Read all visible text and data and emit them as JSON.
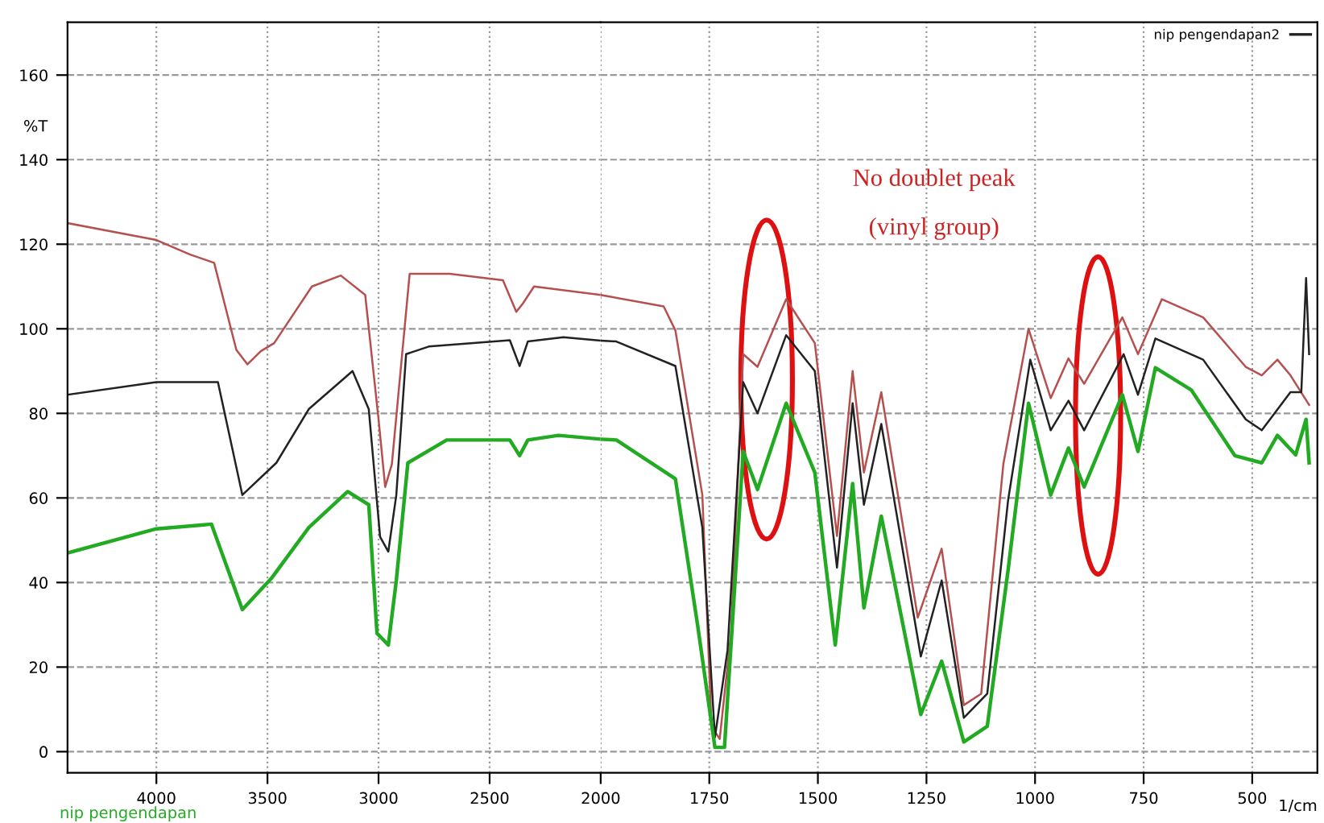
{
  "chart_data": [
    {
      "type": "line",
      "ylabel": "%T",
      "xlim": [
        4400,
        2000
      ],
      "ylim": [
        -5,
        172.5
      ],
      "xticks": [
        4000,
        3500,
        3000,
        2500
      ],
      "yticks": [
        0,
        20,
        40,
        60,
        80,
        100,
        120,
        140,
        160
      ],
      "grid": true,
      "line_style": "solid",
      "marker": "none",
      "annotations": [
        "nip pengendapan"
      ],
      "series": [
        {
          "color": "#b5504f",
          "x": [
            4400,
            4000,
            3850,
            3740,
            3640,
            3590,
            3530,
            3470,
            3300,
            3170,
            3060,
            3000,
            2970,
            2940,
            2860,
            2680,
            2440,
            2380,
            2350,
            2300,
            2000
          ],
          "values": [
            125,
            121,
            117.6,
            115.6,
            95,
            91.6,
            94.7,
            96.6,
            110,
            112.6,
            108,
            78.6,
            62.6,
            68,
            113,
            113,
            111.5,
            104,
            106,
            110,
            108
          ]
        },
        {
          "color": "#222222",
          "x": [
            4400,
            4000,
            3723,
            3613,
            3460,
            3314,
            3117,
            3044,
            2993,
            2956,
            2920,
            2876,
            2774,
            2409,
            2365,
            2328,
            2168,
            2000
          ],
          "values": [
            84.4,
            87.4,
            87.4,
            60.7,
            68.3,
            81,
            90,
            81,
            50.8,
            47.3,
            60.7,
            94,
            95.8,
            97.3,
            91.2,
            97,
            98,
            97.2
          ]
        },
        {
          "color": "#22aa22",
          "x": [
            4400,
            4000,
            3752,
            3613,
            3482,
            3314,
            3139,
            3044,
            3007,
            2956,
            2920,
            2868,
            2693,
            2409,
            2365,
            2328,
            2190,
            2000
          ],
          "values": [
            47,
            52.7,
            53.8,
            33.6,
            41,
            53,
            61.5,
            58.4,
            28,
            25.2,
            40.5,
            68.3,
            73.7,
            73.7,
            70,
            73.7,
            74.8,
            73.9
          ]
        }
      ]
    },
    {
      "type": "line",
      "xlabel": "1/cm",
      "xlim": [
        2000,
        350
      ],
      "ylim": [
        -5,
        172.5
      ],
      "xticks": [
        2000,
        1750,
        1500,
        1250,
        1000,
        750,
        500
      ],
      "yticks": [
        0,
        20,
        40,
        60,
        80,
        100,
        120,
        140,
        160
      ],
      "tick_labels": "x",
      "grid": true,
      "legend": "top right",
      "line_style": "solid",
      "marker": "none",
      "annotations": [
        "No doublet peak",
        "(vinyl group)"
      ],
      "series": [
        {
          "color": "#b5504f",
          "x": [
            2000,
            1855,
            1828,
            1766,
            1745,
            1726,
            1700,
            1672,
            1639,
            1573,
            1507,
            1456,
            1420,
            1394,
            1354,
            1270,
            1215,
            1164,
            1124,
            1073,
            1015,
            964,
            923,
            887,
            799,
            763,
            708,
            613,
            515,
            478,
            442,
            412,
            369
          ],
          "values": [
            108,
            105.3,
            99.6,
            60.7,
            6,
            3,
            28,
            94,
            91,
            107,
            96.6,
            51,
            90,
            66,
            85,
            31.7,
            48,
            11,
            13.7,
            68,
            100,
            83.6,
            93,
            87,
            102.7,
            94,
            107,
            102.7,
            91,
            89,
            92.7,
            89,
            82
          ]
        },
        {
          "name": "nip pengendapan2",
          "color": "#222222",
          "x": [
            2000,
            1964,
            1828,
            1766,
            1737,
            1708,
            1672,
            1639,
            1573,
            1507,
            1456,
            1420,
            1394,
            1354,
            1263,
            1215,
            1164,
            1110,
            1062,
            1011,
            964,
            923,
            887,
            796,
            763,
            723,
            613,
            515,
            478,
            412,
            387,
            376,
            369
          ],
          "values": [
            97.2,
            97,
            91.2,
            53,
            3.4,
            24,
            87.4,
            80,
            98.5,
            90,
            43.5,
            82.4,
            58.4,
            77.5,
            22.5,
            40.5,
            8,
            13.7,
            59.5,
            92.7,
            76,
            83,
            76,
            94,
            84.4,
            97.7,
            92.7,
            78.6,
            76,
            85,
            85,
            112,
            94
          ]
        },
        {
          "color": "#22aa22",
          "x": [
            2000,
            1964,
            1828,
            1777,
            1737,
            1715,
            1697,
            1672,
            1639,
            1573,
            1507,
            1460,
            1420,
            1394,
            1354,
            1263,
            1215,
            1164,
            1110,
            1062,
            1015,
            964,
            923,
            887,
            799,
            763,
            723,
            640,
            540,
            478,
            442,
            400,
            376,
            369
          ],
          "values": [
            73.9,
            73.7,
            64.5,
            30,
            1,
            1,
            30,
            71,
            62,
            82.4,
            66,
            25.2,
            63.4,
            34,
            55.7,
            8.8,
            21.4,
            2.3,
            6,
            43,
            82.4,
            60.7,
            71.8,
            62.6,
            84.4,
            71,
            90.8,
            85.5,
            70,
            68.3,
            74.8,
            70.2,
            78.6,
            68.3
          ]
        }
      ]
    }
  ]
}
